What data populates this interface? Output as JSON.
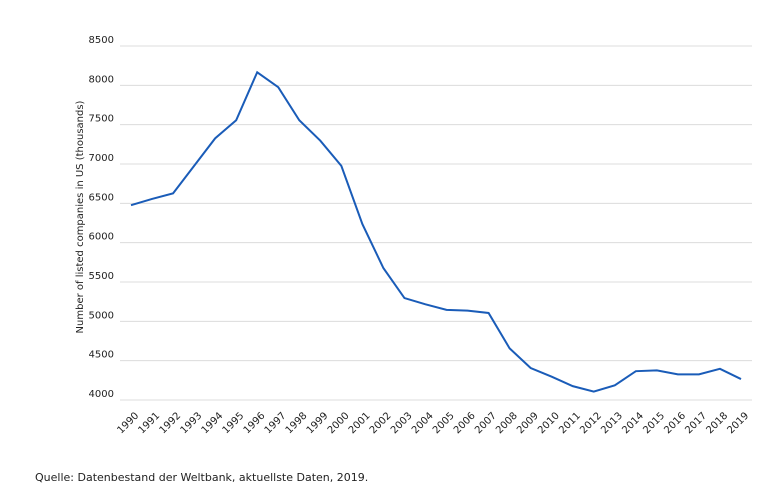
{
  "chart_data": {
    "type": "line",
    "y_label": "Number of listed companies in US (thousands)",
    "source": "Quelle: Datenbestand der Weltbank, aktuellste Daten, 2019.",
    "categories": [
      "1990",
      "1991",
      "1992",
      "1993",
      "1994",
      "1995",
      "1996",
      "1997",
      "1998",
      "1999",
      "2000",
      "2001",
      "2002",
      "2003",
      "2004",
      "2005",
      "2006",
      "2007",
      "2008",
      "2009",
      "2010",
      "2011",
      "2012",
      "2013",
      "2014",
      "2015",
      "2016",
      "2017",
      "2018",
      "2019"
    ],
    "series": [
      {
        "name": "Listed companies",
        "color": "#1a5cb8",
        "values": [
          6400,
          6480,
          6550,
          6900,
          7250,
          7480,
          8090,
          7900,
          7480,
          7220,
          6900,
          6160,
          5600,
          5220,
          5140,
          5070,
          5060,
          5030,
          4580,
          4330,
          4220,
          4100,
          4030,
          4110,
          4290,
          4300,
          4250,
          4250,
          4320,
          4190
        ]
      }
    ],
    "ylim": [
      4000,
      8500
    ],
    "yticks": [
      4000,
      4500,
      5000,
      5500,
      6000,
      6500,
      7000,
      7500,
      8000,
      8500
    ],
    "grid": true
  }
}
